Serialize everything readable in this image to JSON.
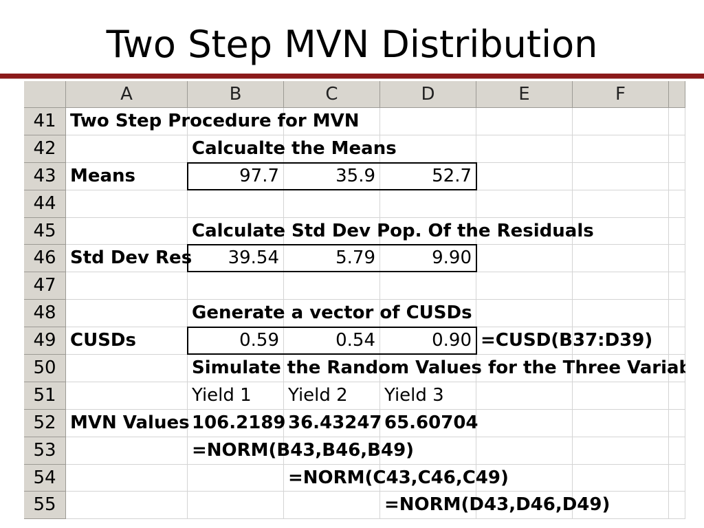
{
  "slide": {
    "title": "Two Step MVN Distribution"
  },
  "sheet": {
    "columns": [
      "A",
      "B",
      "C",
      "D",
      "E",
      "F"
    ],
    "rows": [
      {
        "num": "41",
        "a": "Two Step Procedure for MVN",
        "b": "",
        "c": "",
        "d": "",
        "e": "",
        "f": ""
      },
      {
        "num": "42",
        "a": "",
        "b": "Calcualte the Means",
        "c": "",
        "d": "",
        "e": "",
        "f": ""
      },
      {
        "num": "43",
        "a": "Means",
        "b": "97.7",
        "c": "35.9",
        "d": "52.7",
        "e": "",
        "f": ""
      },
      {
        "num": "44",
        "a": "",
        "b": "",
        "c": "",
        "d": "",
        "e": "",
        "f": ""
      },
      {
        "num": "45",
        "a": "",
        "b": "Calculate Std Dev Pop. Of the Residuals",
        "c": "",
        "d": "",
        "e": "",
        "f": ""
      },
      {
        "num": "46",
        "a": "Std Dev Res",
        "b": "39.54",
        "c": "5.79",
        "d": "9.90",
        "e": "",
        "f": ""
      },
      {
        "num": "47",
        "a": "",
        "b": "",
        "c": "",
        "d": "",
        "e": "",
        "f": ""
      },
      {
        "num": "48",
        "a": "",
        "b": "Generate a vector of CUSDs",
        "c": "",
        "d": "",
        "e": "",
        "f": ""
      },
      {
        "num": "49",
        "a": "CUSDs",
        "b": "0.59",
        "c": "0.54",
        "d": "0.90",
        "e": "=CUSD(B37:D39)",
        "f": ""
      },
      {
        "num": "50",
        "a": "",
        "b": "Simulate the Random Values for the Three Variables",
        "c": "",
        "d": "",
        "e": "",
        "f": ""
      },
      {
        "num": "51",
        "a": "",
        "b": "Yield 1",
        "c": "Yield 2",
        "d": "Yield 3",
        "e": "",
        "f": ""
      },
      {
        "num": "52",
        "a": "MVN Values",
        "b": "106.2189",
        "c": "36.43247",
        "d": "65.60704",
        "e": "",
        "f": ""
      },
      {
        "num": "53",
        "a": "",
        "b": "=NORM(B43,B46,B49)",
        "c": "",
        "d": "",
        "e": "",
        "f": ""
      },
      {
        "num": "54",
        "a": "",
        "b": "",
        "c": "=NORM(C43,C46,C49)",
        "d": "",
        "e": "",
        "f": ""
      },
      {
        "num": "55",
        "a": "",
        "b": "",
        "c": "",
        "d": "=NORM(D43,D46,D49)",
        "e": "",
        "f": ""
      }
    ]
  }
}
